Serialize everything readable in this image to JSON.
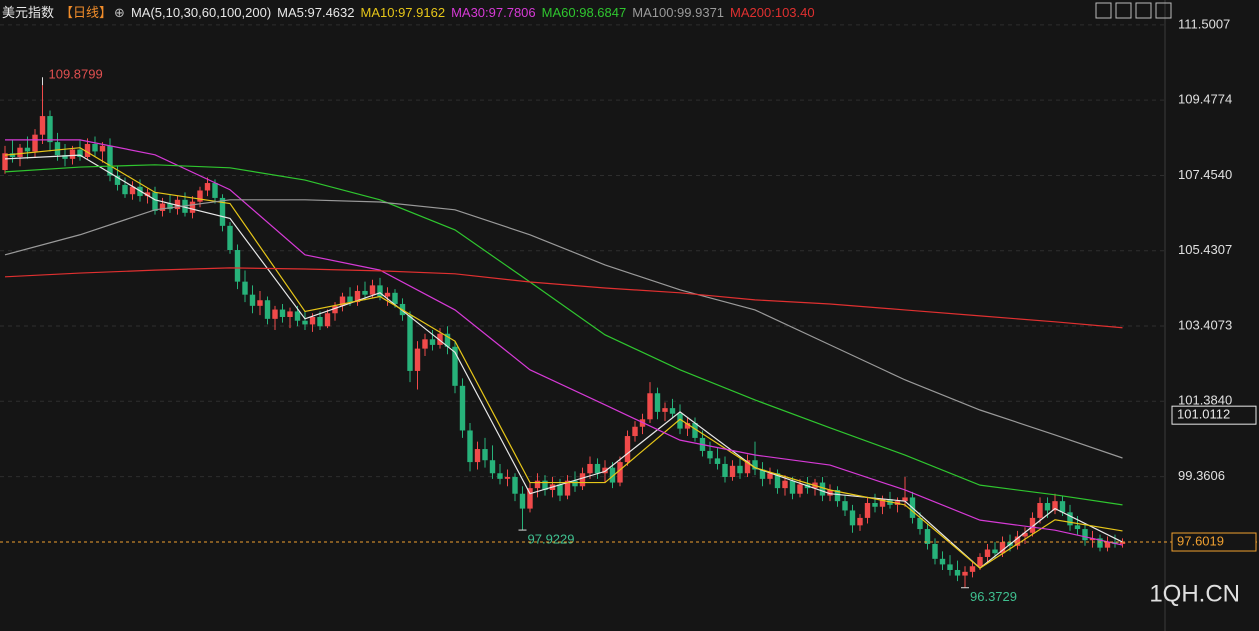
{
  "chart_data": {
    "type": "candlestick",
    "title": "美元指数",
    "period": "【日线】",
    "indicator": "MA(5,10,30,60,100,200)",
    "watermark": "1QH.CN",
    "ylim": [
      95.21,
      112.17
    ],
    "yticks": [
      111.5007,
      109.4774,
      {
        "value": 107.454,
        "label": "107.4540"
      },
      105.4307,
      103.4073,
      {
        "value": 101.384,
        "label": "101.3840"
      },
      99.3606
    ],
    "grid": true,
    "up_color": "#f04a4a",
    "down_color": "#27b27a",
    "high_label": 109.8799,
    "low_labels": [
      97.9229,
      96.3729
    ],
    "price_tags": [
      {
        "value": 101.0112,
        "color": "#e8e8e8"
      },
      {
        "value": 97.6019,
        "color": "#f0a030"
      }
    ],
    "candles": [
      [
        107.6,
        108.25,
        107.5,
        108.05
      ],
      [
        108.05,
        108.4,
        107.8,
        107.95
      ],
      [
        107.95,
        108.3,
        107.7,
        108.2
      ],
      [
        108.2,
        108.5,
        107.9,
        108.1
      ],
      [
        108.1,
        108.7,
        107.95,
        108.55
      ],
      [
        108.55,
        109.8799,
        108.3,
        109.05
      ],
      [
        109.05,
        109.2,
        108.1,
        108.35
      ],
      [
        108.35,
        108.6,
        107.85,
        108.0
      ],
      [
        108.0,
        108.3,
        107.7,
        107.9
      ],
      [
        107.9,
        108.25,
        107.75,
        108.15
      ],
      [
        108.15,
        108.4,
        107.85,
        107.95
      ],
      [
        107.95,
        108.45,
        107.9,
        108.3
      ],
      [
        108.3,
        108.5,
        107.95,
        108.1
      ],
      [
        108.1,
        108.35,
        107.8,
        108.25
      ],
      [
        108.25,
        108.45,
        107.3,
        107.45
      ],
      [
        107.45,
        107.7,
        107.05,
        107.2
      ],
      [
        107.2,
        107.4,
        106.85,
        106.95
      ],
      [
        106.95,
        107.3,
        106.8,
        107.15
      ],
      [
        107.15,
        107.35,
        106.75,
        106.9
      ],
      [
        106.9,
        107.1,
        106.7,
        107.0
      ],
      [
        107.0,
        107.15,
        106.4,
        106.5
      ],
      [
        106.5,
        106.85,
        106.35,
        106.7
      ],
      [
        106.7,
        106.95,
        106.45,
        106.55
      ],
      [
        106.55,
        106.9,
        106.4,
        106.8
      ],
      [
        106.8,
        107.0,
        106.35,
        106.45
      ],
      [
        106.45,
        106.9,
        106.3,
        106.75
      ],
      [
        106.75,
        107.15,
        106.6,
        107.05
      ],
      [
        107.05,
        107.4,
        106.9,
        107.25
      ],
      [
        107.25,
        107.35,
        106.7,
        106.85
      ],
      [
        106.85,
        106.95,
        105.95,
        106.1
      ],
      [
        106.1,
        106.2,
        105.35,
        105.45
      ],
      [
        105.45,
        105.6,
        104.4,
        104.6
      ],
      [
        104.6,
        104.9,
        104.05,
        104.25
      ],
      [
        104.25,
        104.5,
        103.75,
        103.95
      ],
      [
        103.95,
        104.35,
        103.7,
        104.1
      ],
      [
        104.1,
        104.2,
        103.45,
        103.6
      ],
      [
        103.6,
        103.95,
        103.3,
        103.85
      ],
      [
        103.85,
        104.0,
        103.5,
        103.65
      ],
      [
        103.65,
        103.9,
        103.35,
        103.8
      ],
      [
        103.8,
        103.95,
        103.4,
        103.55
      ],
      [
        103.55,
        103.8,
        103.3,
        103.45
      ],
      [
        103.45,
        103.75,
        103.25,
        103.65
      ],
      [
        103.65,
        103.8,
        103.3,
        103.4
      ],
      [
        103.4,
        103.85,
        103.35,
        103.75
      ],
      [
        103.75,
        104.05,
        103.55,
        103.95
      ],
      [
        103.95,
        104.3,
        103.8,
        104.2
      ],
      [
        104.2,
        104.45,
        103.95,
        104.05
      ],
      [
        104.05,
        104.5,
        103.95,
        104.35
      ],
      [
        104.35,
        104.6,
        104.1,
        104.25
      ],
      [
        104.25,
        104.65,
        104.15,
        104.5
      ],
      [
        104.5,
        104.7,
        104.1,
        104.2
      ],
      [
        104.2,
        104.45,
        103.95,
        104.3
      ],
      [
        104.3,
        104.4,
        103.9,
        104.0
      ],
      [
        104.0,
        104.15,
        103.55,
        103.7
      ],
      [
        103.7,
        103.8,
        101.9,
        102.2
      ],
      [
        102.2,
        103.0,
        101.7,
        102.8
      ],
      [
        102.8,
        103.2,
        102.6,
        103.05
      ],
      [
        103.05,
        103.3,
        102.75,
        102.9
      ],
      [
        102.9,
        103.35,
        102.8,
        103.2
      ],
      [
        103.2,
        103.4,
        102.65,
        102.85
      ],
      [
        102.85,
        103.0,
        101.6,
        101.8
      ],
      [
        101.8,
        102.0,
        100.4,
        100.6
      ],
      [
        100.6,
        100.8,
        99.5,
        99.75
      ],
      [
        99.75,
        100.3,
        99.55,
        100.1
      ],
      [
        100.1,
        100.4,
        99.6,
        99.8
      ],
      [
        99.8,
        100.2,
        99.3,
        99.45
      ],
      [
        99.45,
        99.7,
        99.15,
        99.3
      ],
      [
        99.3,
        99.55,
        99.1,
        99.35
      ],
      [
        99.35,
        99.45,
        98.7,
        98.9
      ],
      [
        98.9,
        99.1,
        97.9229,
        98.5
      ],
      [
        98.5,
        99.2,
        98.4,
        99.05
      ],
      [
        99.05,
        99.45,
        98.8,
        99.25
      ],
      [
        99.25,
        99.4,
        98.85,
        99.0
      ],
      [
        99.0,
        99.35,
        98.8,
        99.15
      ],
      [
        99.15,
        99.3,
        98.7,
        98.85
      ],
      [
        98.85,
        99.4,
        98.75,
        99.25
      ],
      [
        99.25,
        99.5,
        98.95,
        99.1
      ],
      [
        99.1,
        99.6,
        99.0,
        99.45
      ],
      [
        99.45,
        99.9,
        99.3,
        99.7
      ],
      [
        99.7,
        99.85,
        99.3,
        99.45
      ],
      [
        99.45,
        99.8,
        99.2,
        99.6
      ],
      [
        99.6,
        99.75,
        99.05,
        99.2
      ],
      [
        99.2,
        99.9,
        99.1,
        99.75
      ],
      [
        99.75,
        100.6,
        99.65,
        100.45
      ],
      [
        100.45,
        100.85,
        100.3,
        100.7
      ],
      [
        100.7,
        101.05,
        100.5,
        100.9
      ],
      [
        100.9,
        101.9,
        100.8,
        101.6
      ],
      [
        101.6,
        101.75,
        100.9,
        101.1
      ],
      [
        101.1,
        101.35,
        100.85,
        101.2
      ],
      [
        101.2,
        101.45,
        100.95,
        101.05
      ],
      [
        101.05,
        101.3,
        100.5,
        100.65
      ],
      [
        100.65,
        100.95,
        100.45,
        100.8
      ],
      [
        100.8,
        100.95,
        100.3,
        100.4
      ],
      [
        100.4,
        100.6,
        99.9,
        100.05
      ],
      [
        100.05,
        100.3,
        99.7,
        99.85
      ],
      [
        99.85,
        100.15,
        99.55,
        99.7
      ],
      [
        99.7,
        99.9,
        99.2,
        99.35
      ],
      [
        99.35,
        99.8,
        99.25,
        99.65
      ],
      [
        99.65,
        99.85,
        99.3,
        99.45
      ],
      [
        99.45,
        99.95,
        99.35,
        99.8
      ],
      [
        99.8,
        100.3,
        99.4,
        99.55
      ],
      [
        99.55,
        99.75,
        99.1,
        99.3
      ],
      [
        99.3,
        99.6,
        99.15,
        99.45
      ],
      [
        99.45,
        99.55,
        98.9,
        99.05
      ],
      [
        99.05,
        99.4,
        98.85,
        99.25
      ],
      [
        99.25,
        99.35,
        98.75,
        98.9
      ],
      [
        98.9,
        99.3,
        98.8,
        99.15
      ],
      [
        99.15,
        99.35,
        98.9,
        99.05
      ],
      [
        99.05,
        99.3,
        98.85,
        99.2
      ],
      [
        99.2,
        99.35,
        98.7,
        98.85
      ],
      [
        98.85,
        99.15,
        98.7,
        99.0
      ],
      [
        99.0,
        99.1,
        98.55,
        98.7
      ],
      [
        98.7,
        98.85,
        98.3,
        98.45
      ],
      [
        98.45,
        98.6,
        97.85,
        98.05
      ],
      [
        98.05,
        98.35,
        97.9,
        98.25
      ],
      [
        98.25,
        98.8,
        98.1,
        98.65
      ],
      [
        98.65,
        98.9,
        98.4,
        98.55
      ],
      [
        98.55,
        98.85,
        98.35,
        98.75
      ],
      [
        98.75,
        98.95,
        98.5,
        98.6
      ],
      [
        98.6,
        98.8,
        98.4,
        98.7
      ],
      [
        98.7,
        99.35,
        98.55,
        98.8
      ],
      [
        98.8,
        98.95,
        98.1,
        98.25
      ],
      [
        98.25,
        98.4,
        97.8,
        97.95
      ],
      [
        97.95,
        98.1,
        97.4,
        97.55
      ],
      [
        97.55,
        97.7,
        97.0,
        97.15
      ],
      [
        97.15,
        97.35,
        96.85,
        97.0
      ],
      [
        97.0,
        97.25,
        96.7,
        96.85
      ],
      [
        96.85,
        97.1,
        96.55,
        96.7
      ],
      [
        96.7,
        96.95,
        96.3729,
        96.8
      ],
      [
        96.8,
        97.1,
        96.65,
        96.95
      ],
      [
        96.95,
        97.3,
        96.85,
        97.2
      ],
      [
        97.2,
        97.55,
        97.05,
        97.4
      ],
      [
        97.4,
        97.6,
        97.15,
        97.3
      ],
      [
        97.3,
        97.75,
        97.2,
        97.6
      ],
      [
        97.6,
        97.8,
        97.35,
        97.5
      ],
      [
        97.5,
        97.9,
        97.4,
        97.75
      ],
      [
        97.75,
        98.0,
        97.55,
        97.85
      ],
      [
        97.85,
        98.4,
        97.75,
        98.25
      ],
      [
        98.25,
        98.8,
        98.1,
        98.65
      ],
      [
        98.65,
        98.8,
        98.25,
        98.45
      ],
      [
        98.45,
        98.9,
        98.35,
        98.7
      ],
      [
        98.7,
        98.85,
        98.3,
        98.4
      ],
      [
        98.4,
        98.6,
        97.9,
        98.05
      ],
      [
        98.05,
        98.3,
        97.8,
        97.95
      ],
      [
        97.95,
        98.1,
        97.5,
        97.65
      ],
      [
        97.65,
        97.9,
        97.45,
        97.7
      ],
      [
        97.7,
        97.8,
        97.35,
        97.45
      ],
      [
        97.45,
        97.75,
        97.35,
        97.6
      ],
      [
        97.6,
        97.8,
        97.45,
        97.55
      ],
      [
        97.55,
        97.7,
        97.45,
        97.6
      ]
    ],
    "ma_x": [
      0,
      10,
      20,
      30,
      40,
      50,
      60,
      70,
      80,
      90,
      100,
      110,
      120,
      130,
      140,
      149
    ],
    "series": [
      {
        "name": "MA5:97.4632",
        "color": "#e8e8e8",
        "values": [
          107.9,
          108.0,
          106.8,
          106.3,
          103.6,
          104.3,
          102.7,
          98.9,
          99.5,
          101.1,
          99.6,
          98.9,
          98.7,
          96.9,
          98.5,
          97.6
        ]
      },
      {
        "name": "MA10:97.9162",
        "color": "#e6c619",
        "values": [
          108.0,
          108.2,
          107.0,
          106.7,
          103.8,
          104.2,
          103.0,
          99.2,
          99.2,
          100.9,
          99.6,
          99.0,
          98.6,
          96.9,
          98.2,
          97.9
        ]
      },
      {
        "name": "MA30:97.7806",
        "color": "#d63ad6",
        "values": [
          108.41,
          108.41,
          108.01,
          107.07,
          105.32,
          104.91,
          103.84,
          102.23,
          101.29,
          100.34,
          99.94,
          99.67,
          99.0,
          98.19,
          97.92,
          97.52
        ]
      },
      {
        "name": "MA60:98.6847",
        "color": "#2fc62f",
        "values": [
          107.55,
          107.68,
          107.74,
          107.66,
          107.33,
          106.8,
          105.99,
          104.59,
          103.17,
          102.23,
          101.42,
          100.67,
          99.94,
          99.13,
          98.87,
          98.6
        ]
      },
      {
        "name": "MA100:99.9371",
        "color": "#9a9a9a",
        "values": [
          105.32,
          105.86,
          106.53,
          106.8,
          106.8,
          106.74,
          106.53,
          105.86,
          105.05,
          104.38,
          103.84,
          102.9,
          101.96,
          101.15,
          100.48,
          99.86
        ]
      },
      {
        "name": "MA200:103.40",
        "color": "#e03030",
        "values": [
          104.73,
          104.83,
          104.91,
          104.97,
          104.94,
          104.89,
          104.81,
          104.59,
          104.43,
          104.3,
          104.11,
          104.0,
          103.84,
          103.68,
          103.52,
          103.36
        ]
      }
    ]
  }
}
